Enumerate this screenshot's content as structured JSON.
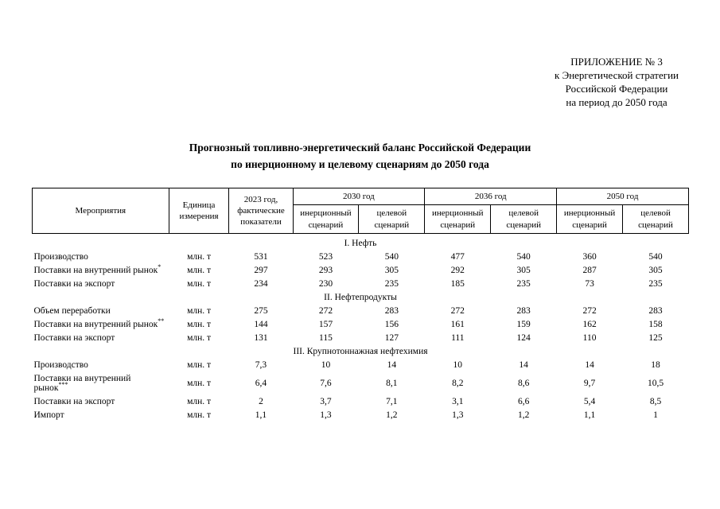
{
  "appendix": {
    "lines": [
      "ПРИЛОЖЕНИЕ № 3",
      "к Энергетической стратегии",
      "Российской Федерации",
      "на период до 2050 года"
    ]
  },
  "title": {
    "line1": "Прогнозный топливно-энергетический баланс Российской Федерации",
    "line2": "по инерционному и целевому сценариям до 2050 года"
  },
  "table": {
    "header": {
      "measures": "Мероприятия",
      "unit": "Единица измерения",
      "col2023": "2023 год, фактические показатели",
      "years": [
        "2030 год",
        "2036 год",
        "2050 год"
      ],
      "scenario_inertial": "инерционный сценарий",
      "scenario_target": "целевой сценарий"
    },
    "sections": [
      {
        "title": "I. Нефть",
        "rows": [
          {
            "label": "Производство",
            "sup": "",
            "unit": "млн. т",
            "values": [
              "531",
              "523",
              "540",
              "477",
              "540",
              "360",
              "540"
            ]
          },
          {
            "label": "Поставки на внутренний рынок",
            "sup": "*",
            "unit": "млн. т",
            "values": [
              "297",
              "293",
              "305",
              "292",
              "305",
              "287",
              "305"
            ]
          },
          {
            "label": "Поставки на экспорт",
            "sup": "",
            "unit": "млн. т",
            "values": [
              "234",
              "230",
              "235",
              "185",
              "235",
              "73",
              "235"
            ]
          }
        ]
      },
      {
        "title": "II. Нефтепродукты",
        "rows": [
          {
            "label": "Объем переработки",
            "sup": "",
            "unit": "млн. т",
            "values": [
              "275",
              "272",
              "283",
              "272",
              "283",
              "272",
              "283"
            ]
          },
          {
            "label": "Поставки на внутренний рынок",
            "sup": "**",
            "unit": "млн. т",
            "values": [
              "144",
              "157",
              "156",
              "161",
              "159",
              "162",
              "158"
            ]
          },
          {
            "label": "Поставки на экспорт",
            "sup": "",
            "unit": "млн. т",
            "values": [
              "131",
              "115",
              "127",
              "111",
              "124",
              "110",
              "125"
            ]
          }
        ]
      },
      {
        "title": "III. Крупнотоннажная нефтехимия",
        "rows": [
          {
            "label": "Производство",
            "sup": "",
            "unit": "млн. т",
            "values": [
              "7,3",
              "10",
              "14",
              "10",
              "14",
              "14",
              "18"
            ]
          },
          {
            "label": "Поставки на внутренний рынок",
            "sup": "***",
            "unit": "млн. т",
            "values": [
              "6,4",
              "7,6",
              "8,1",
              "8,2",
              "8,6",
              "9,7",
              "10,5"
            ]
          },
          {
            "label": "Поставки на экспорт",
            "sup": "",
            "unit": "млн. т",
            "values": [
              "2",
              "3,7",
              "7,1",
              "3,1",
              "6,6",
              "5,4",
              "8,5"
            ]
          },
          {
            "label": "Импорт",
            "sup": "",
            "unit": "млн. т",
            "values": [
              "1,1",
              "1,3",
              "1,2",
              "1,3",
              "1,2",
              "1,1",
              "1"
            ]
          }
        ]
      }
    ]
  }
}
